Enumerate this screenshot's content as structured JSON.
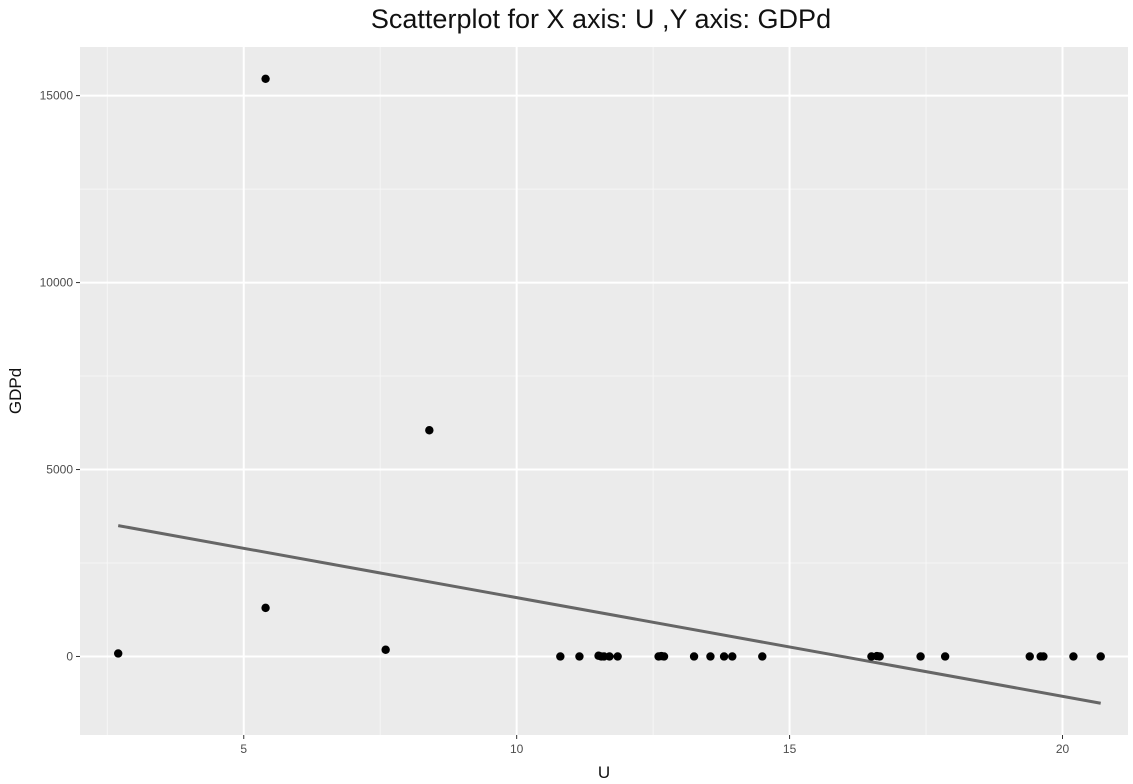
{
  "chart_data": {
    "type": "scatter",
    "title": "Scatterplot for X axis: U ,Y axis: GDPd",
    "xlabel": "U",
    "ylabel": "GDPd",
    "xlim": [
      2.0,
      21.2
    ],
    "ylim": [
      -2100,
      16300
    ],
    "x_ticks": [
      5,
      10,
      15,
      20
    ],
    "x_minor": [
      2.5,
      7.5,
      12.5,
      17.5
    ],
    "y_ticks": [
      0,
      5000,
      10000,
      15000
    ],
    "y_minor": [
      -2500,
      2500,
      7500,
      12500
    ],
    "grid": true,
    "legend": "none",
    "points": [
      {
        "x": 2.7,
        "y": 80
      },
      {
        "x": 5.4,
        "y": 15450
      },
      {
        "x": 5.4,
        "y": 1300
      },
      {
        "x": 7.6,
        "y": 180
      },
      {
        "x": 8.4,
        "y": 6050
      },
      {
        "x": 10.8,
        "y": 0
      },
      {
        "x": 11.15,
        "y": 0
      },
      {
        "x": 11.5,
        "y": 20
      },
      {
        "x": 11.55,
        "y": 0
      },
      {
        "x": 11.6,
        "y": 0
      },
      {
        "x": 11.7,
        "y": 0
      },
      {
        "x": 11.85,
        "y": 0
      },
      {
        "x": 12.6,
        "y": 0
      },
      {
        "x": 12.65,
        "y": 10
      },
      {
        "x": 12.7,
        "y": 0
      },
      {
        "x": 13.25,
        "y": 0
      },
      {
        "x": 13.55,
        "y": 0
      },
      {
        "x": 13.8,
        "y": 0
      },
      {
        "x": 13.95,
        "y": 0
      },
      {
        "x": 14.5,
        "y": 0
      },
      {
        "x": 16.5,
        "y": 0
      },
      {
        "x": 16.6,
        "y": 10
      },
      {
        "x": 16.65,
        "y": 0
      },
      {
        "x": 17.4,
        "y": 0
      },
      {
        "x": 17.85,
        "y": 0
      },
      {
        "x": 19.4,
        "y": 0
      },
      {
        "x": 19.6,
        "y": 0
      },
      {
        "x": 19.65,
        "y": 0
      },
      {
        "x": 20.2,
        "y": 0
      },
      {
        "x": 20.7,
        "y": 0
      }
    ],
    "trend_line": {
      "x": [
        2.7,
        20.7
      ],
      "y": [
        3500,
        -1250
      ]
    },
    "colors": {
      "panel": "#ebebeb",
      "grid_major": "#ffffff",
      "point": "#000000",
      "trend": "#666666"
    }
  }
}
